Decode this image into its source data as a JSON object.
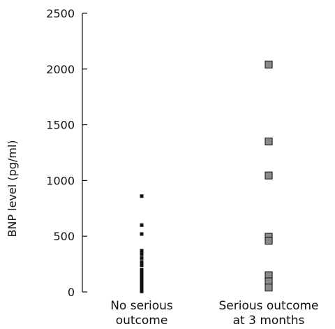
{
  "chart_data": {
    "type": "scatter",
    "title": "",
    "xlabel": "",
    "ylabel": "BNP level (pg/ml)",
    "ylim": [
      0,
      2500
    ],
    "yticks": [
      "0",
      "500",
      "1000",
      "1500",
      "2000",
      "2500"
    ],
    "grid": false,
    "categories": [
      [
        "No serious",
        "outcome"
      ],
      [
        "Serious outcome",
        "at 3 months"
      ]
    ],
    "series": [
      {
        "category_index": 0,
        "marker": "small-square",
        "color": "#111111",
        "values": [
          860,
          600,
          520,
          370,
          340,
          305,
          270,
          240,
          200,
          185,
          160,
          140,
          120,
          100,
          85,
          70,
          55,
          45,
          35,
          25,
          15,
          10,
          5
        ]
      },
      {
        "category_index": 1,
        "marker": "large-square",
        "color": "#8a8a8a",
        "values": [
          2040,
          1350,
          1045,
          495,
          460,
          150,
          95,
          40
        ]
      }
    ]
  }
}
